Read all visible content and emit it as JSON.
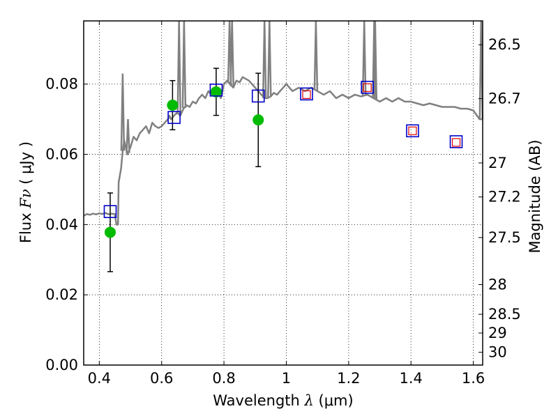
{
  "chart_data": {
    "type": "scatter",
    "title": "",
    "xlabel": "Wavelength  λ (μm)",
    "xlabel_parts": {
      "prefix": "Wavelength  ",
      "symbol": "λ",
      "suffix": " (μm)"
    },
    "ylabel": "Flux  Fν ( μJy )",
    "ylabel_parts": {
      "prefix": "Flux  ",
      "symbol": "Fν",
      "suffix": " ( μJy )"
    },
    "y2label": "Magnitude (AB)",
    "xlim": [
      0.35,
      1.63
    ],
    "ylim": [
      0.0,
      0.098
    ],
    "grid": true,
    "legend": "none",
    "xticks": [
      0.4,
      0.6,
      0.8,
      1.0,
      1.2,
      1.4,
      1.6
    ],
    "xtick_labels": [
      "0.4",
      "0.6",
      "0.8",
      "1",
      "1.2",
      "1.4",
      "1.6"
    ],
    "yticks": [
      0.0,
      0.02,
      0.04,
      0.06,
      0.08
    ],
    "ytick_labels": [
      "0.00",
      "0.02",
      "0.04",
      "0.06",
      "0.08"
    ],
    "y2ticks": [
      26.5,
      26.7,
      27,
      27.2,
      27.5,
      28,
      28.5,
      29,
      30
    ],
    "y2tick_labels": [
      "26.5",
      "26.7",
      "27",
      "27.2",
      "27.5",
      "28",
      "28.5",
      "29",
      "30"
    ],
    "colors": {
      "spectrum": "#808080",
      "observed": "#00bb00",
      "model_blue": "#0000cc",
      "model_red": "#dd0000",
      "error_bar": "#000000"
    },
    "spectrum": {
      "x": [
        0.35,
        0.36,
        0.37,
        0.38,
        0.39,
        0.4,
        0.41,
        0.42,
        0.43,
        0.44,
        0.45,
        0.455,
        0.46,
        0.462,
        0.47,
        0.475,
        0.48,
        0.49,
        0.5,
        0.51,
        0.52,
        0.53,
        0.54,
        0.55,
        0.56,
        0.57,
        0.58,
        0.59,
        0.6,
        0.61,
        0.62,
        0.625,
        0.63,
        0.64,
        0.65,
        0.66,
        0.67,
        0.68,
        0.69,
        0.7,
        0.71,
        0.72,
        0.73,
        0.74,
        0.75,
        0.76,
        0.77,
        0.78,
        0.79,
        0.8,
        0.81,
        0.82,
        0.83,
        0.84,
        0.85,
        0.86,
        0.87,
        0.88,
        0.89,
        0.9,
        0.91,
        0.92,
        0.93,
        0.94,
        0.95,
        0.96,
        0.97,
        0.98,
        0.99,
        1.0,
        1.02,
        1.04,
        1.06,
        1.08,
        1.1,
        1.12,
        1.14,
        1.16,
        1.18,
        1.2,
        1.22,
        1.24,
        1.26,
        1.28,
        1.3,
        1.32,
        1.34,
        1.36,
        1.38,
        1.4,
        1.42,
        1.44,
        1.46,
        1.48,
        1.5,
        1.52,
        1.54,
        1.56,
        1.58,
        1.6,
        1.62,
        1.63
      ],
      "y": [
        0.0425,
        0.043,
        0.0428,
        0.0431,
        0.0429,
        0.0432,
        0.043,
        0.0433,
        0.0429,
        0.0431,
        0.043,
        0.04,
        0.04,
        0.052,
        0.056,
        0.061,
        0.064,
        0.06,
        0.062,
        0.065,
        0.064,
        0.066,
        0.067,
        0.068,
        0.066,
        0.069,
        0.068,
        0.0675,
        0.068,
        0.069,
        0.07,
        0.071,
        0.07,
        0.071,
        0.072,
        0.071,
        0.073,
        0.074,
        0.0735,
        0.075,
        0.0745,
        0.076,
        0.077,
        0.076,
        0.078,
        0.077,
        0.079,
        0.078,
        0.076,
        0.08,
        0.081,
        0.08,
        0.079,
        0.081,
        0.0805,
        0.082,
        0.0815,
        0.081,
        0.08,
        0.079,
        0.078,
        0.077,
        0.076,
        0.076,
        0.0765,
        0.0775,
        0.077,
        0.078,
        0.079,
        0.08,
        0.078,
        0.079,
        0.078,
        0.079,
        0.078,
        0.077,
        0.078,
        0.076,
        0.077,
        0.076,
        0.077,
        0.0765,
        0.077,
        0.076,
        0.075,
        0.076,
        0.075,
        0.076,
        0.075,
        0.075,
        0.0745,
        0.074,
        0.0745,
        0.074,
        0.0735,
        0.0735,
        0.0735,
        0.073,
        0.073,
        0.0725,
        0.07,
        0.07
      ]
    },
    "emission_lines": [
      {
        "x": 0.475,
        "y": 0.083
      },
      {
        "x": 0.492,
        "y": 0.07
      },
      {
        "x": 0.656,
        "y": 0.098
      },
      {
        "x": 0.672,
        "y": 0.098
      },
      {
        "x": 0.818,
        "y": 0.098
      },
      {
        "x": 0.826,
        "y": 0.098
      },
      {
        "x": 0.93,
        "y": 0.098
      },
      {
        "x": 0.946,
        "y": 0.098
      },
      {
        "x": 1.095,
        "y": 0.098
      },
      {
        "x": 1.25,
        "y": 0.098
      },
      {
        "x": 1.282,
        "y": 0.098
      },
      {
        "x": 1.285,
        "y": 0.098
      },
      {
        "x": 1.625,
        "y": 0.098
      }
    ],
    "observed": {
      "x": [
        0.435,
        0.635,
        0.775,
        0.91
      ],
      "y": [
        0.0378,
        0.074,
        0.0778,
        0.0698
      ],
      "yerr": [
        0.0112,
        0.007,
        0.0067,
        0.0133
      ]
    },
    "model_blue": {
      "x": [
        0.435,
        0.64,
        0.775,
        0.91,
        1.065,
        1.26,
        1.405,
        1.545
      ],
      "y": [
        0.0437,
        0.0705,
        0.0783,
        0.0766,
        0.0772,
        0.0791,
        0.0667,
        0.0636
      ]
    },
    "model_red": {
      "x": [
        1.065,
        1.26,
        1.405,
        1.545
      ],
      "y": [
        0.077,
        0.079,
        0.0667,
        0.0634
      ]
    }
  }
}
